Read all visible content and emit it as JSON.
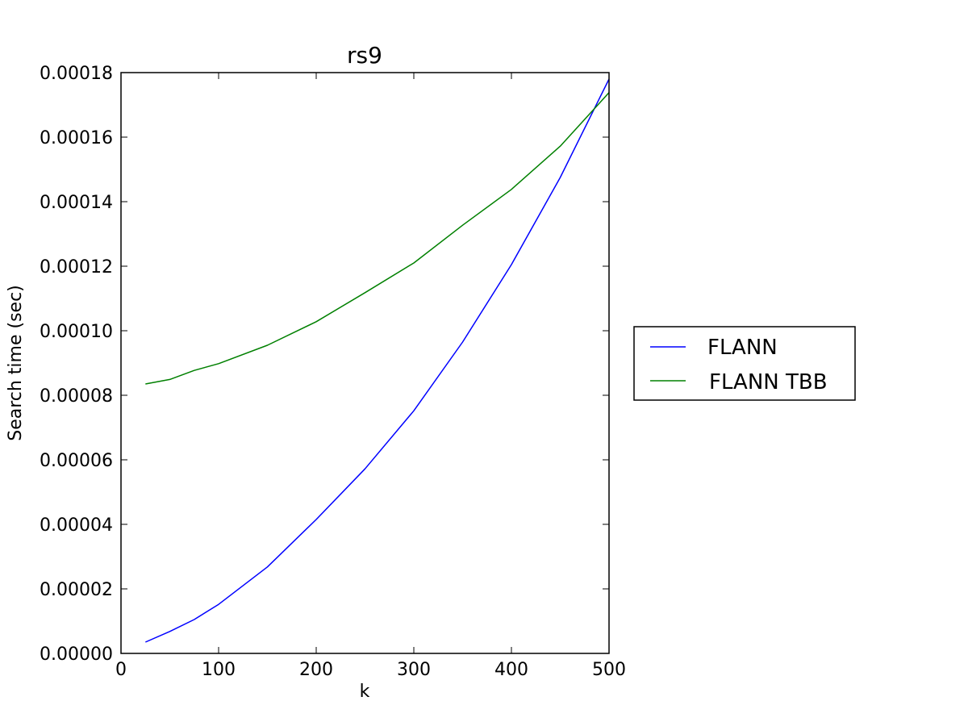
{
  "chart_data": {
    "type": "line",
    "title": "rs9",
    "xlabel": "k",
    "ylabel": "Search time (sec)",
    "xlim": [
      0,
      500
    ],
    "ylim": [
      0,
      0.00018
    ],
    "xticks": [
      0,
      100,
      200,
      300,
      400,
      500
    ],
    "xtick_labels": [
      "0",
      "100",
      "200",
      "300",
      "400",
      "500"
    ],
    "yticks": [
      0,
      2e-05,
      4e-05,
      6e-05,
      8e-05,
      0.0001,
      0.00012,
      0.00014,
      0.00016,
      0.00018
    ],
    "ytick_labels": [
      "0.00000",
      "0.00002",
      "0.00004",
      "0.00006",
      "0.00008",
      "0.00010",
      "0.00012",
      "0.00014",
      "0.00016",
      "0.00018"
    ],
    "grid": false,
    "legend_position": "outside-right",
    "x": [
      25,
      50,
      75,
      100,
      150,
      200,
      250,
      300,
      350,
      400,
      450,
      500
    ],
    "series": [
      {
        "name": "FLANN",
        "color": "#0000ff",
        "values": [
          3.5e-06,
          6.8e-06,
          1.05e-05,
          1.52e-05,
          2.68e-05,
          4.15e-05,
          5.72e-05,
          7.52e-05,
          9.65e-05,
          0.0001205,
          0.0001475,
          0.000178
        ]
      },
      {
        "name": "FLANN TBB",
        "color": "#008000",
        "values": [
          8.35e-05,
          8.49e-05,
          8.77e-05,
          8.98e-05,
          9.55e-05,
          0.0001028,
          0.0001118,
          0.000121,
          0.0001327,
          0.0001438,
          0.0001572,
          0.0001738
        ]
      }
    ]
  }
}
